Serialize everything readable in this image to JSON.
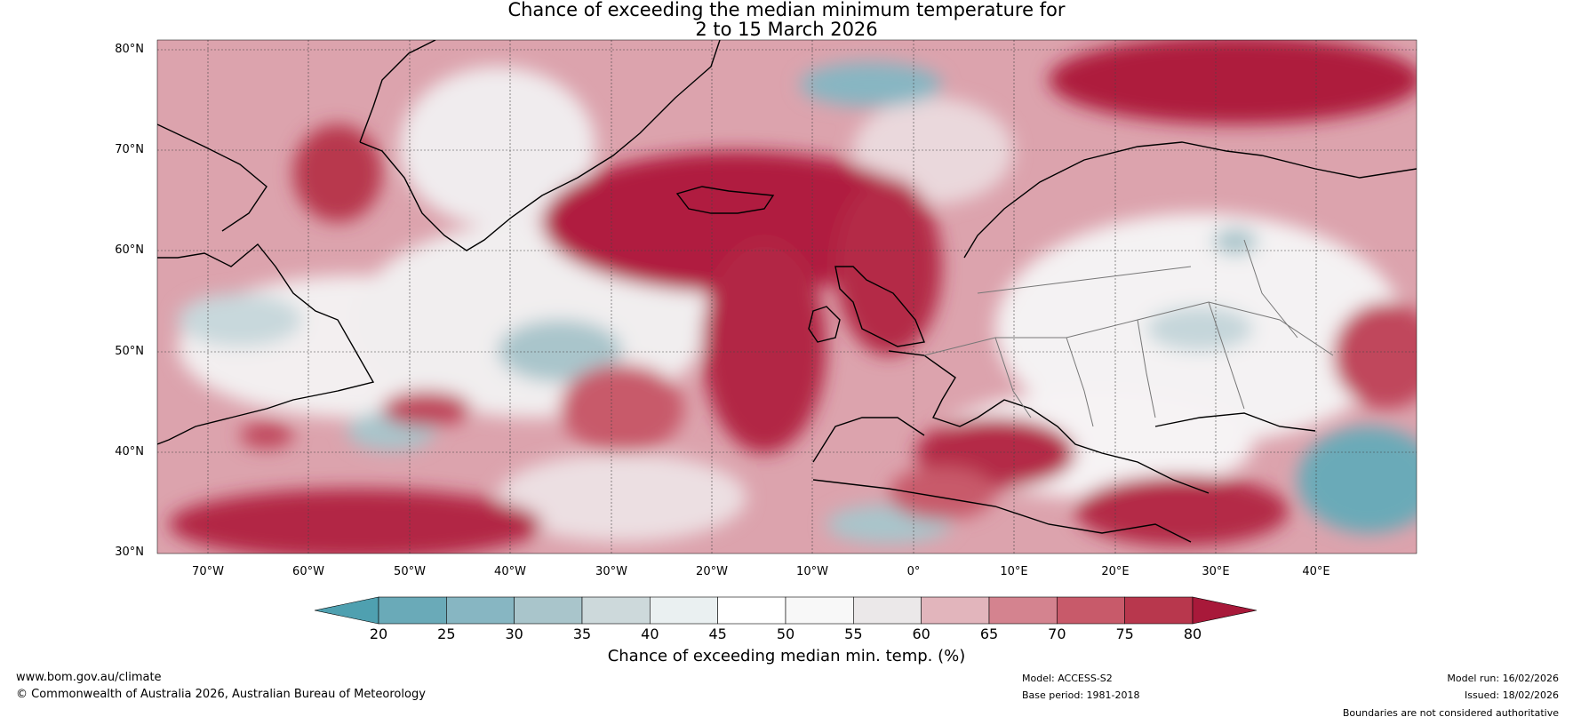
{
  "title": {
    "line1": "Chance of exceeding the median minimum temperature for",
    "line2": "2 to 15 March 2026"
  },
  "map": {
    "lat_labels": [
      "80°N",
      "70°N",
      "60°N",
      "50°N",
      "40°N",
      "30°N"
    ],
    "lon_labels": [
      "70°W",
      "60°W",
      "50°W",
      "40°W",
      "30°W",
      "20°W",
      "10°W",
      "0°",
      "10°E",
      "20°E",
      "30°E",
      "40°E"
    ],
    "extent": {
      "lon_min": -75,
      "lon_max": 50,
      "lat_min": 30,
      "lat_max": 81
    }
  },
  "colorbar": {
    "ticks": [
      "20",
      "25",
      "30",
      "35",
      "40",
      "45",
      "50",
      "55",
      "60",
      "65",
      "70",
      "75",
      "80"
    ],
    "colors": [
      "#4fa0b0",
      "#6aaab8",
      "#87b6c2",
      "#a9c5cb",
      "#cdd9db",
      "#eaf0f1",
      "#ffffff",
      "#f8f8f8",
      "#ebe8e9",
      "#e2b5bc",
      "#d4838f",
      "#c85a6a",
      "#b8374d",
      "#a8193a"
    ],
    "label": "Chance of exceeding median min. temp. (%)"
  },
  "footer": {
    "website": "www.bom.gov.au/climate",
    "copyright": "© Commonwealth of Australia 2026, Australian Bureau of Meteorology",
    "model": "Model: ACCESS-S2",
    "base_period": "Base period: 1981-2018",
    "model_run": "Model run: 16/02/2026",
    "issued": "Issued: 18/02/2026",
    "disclaimer": "Boundaries are not considered authoritative"
  }
}
